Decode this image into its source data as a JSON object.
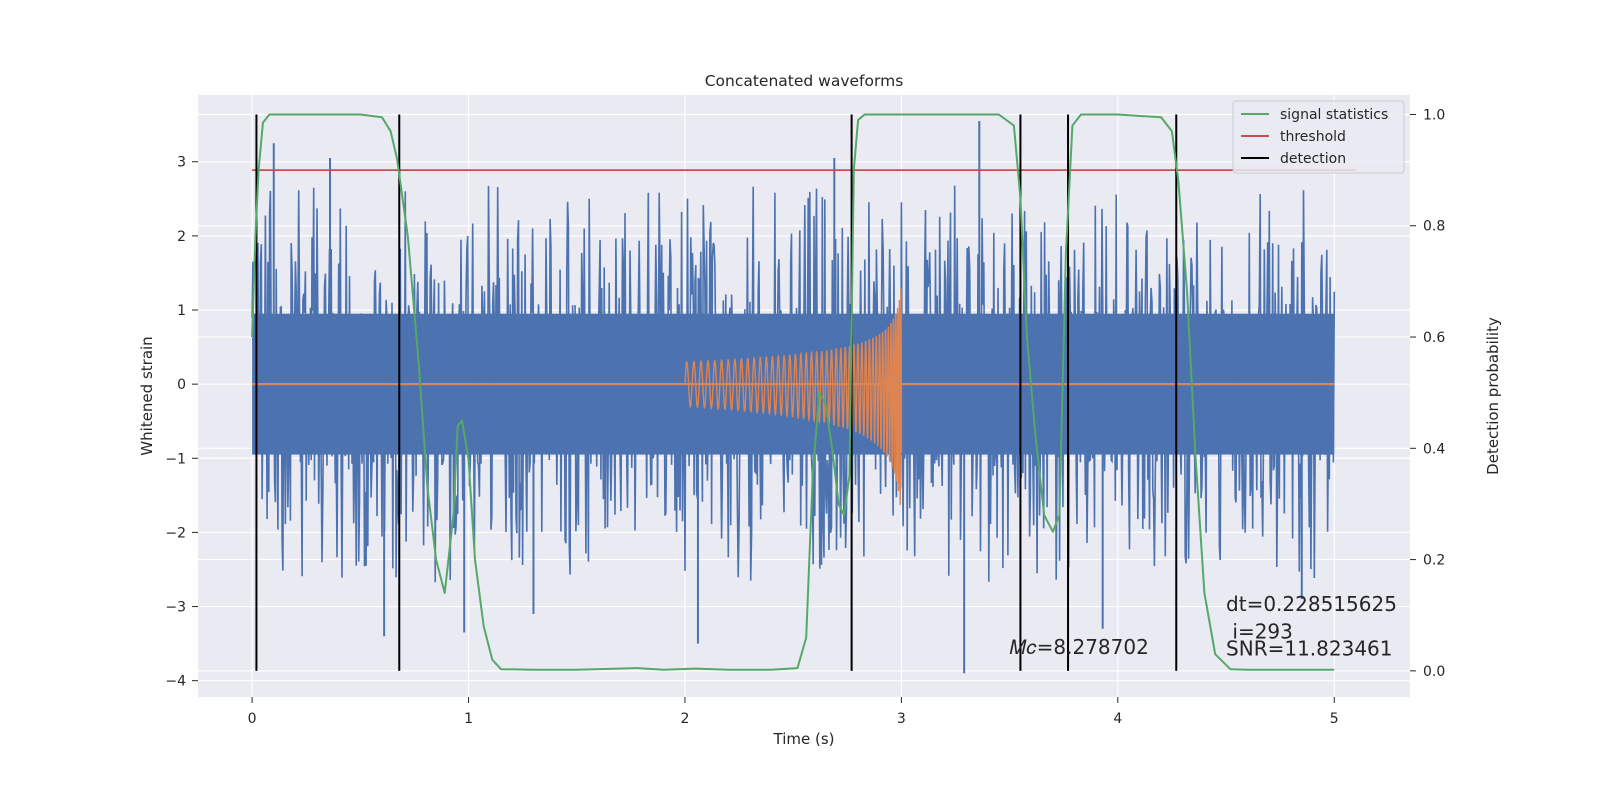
{
  "chart_data": {
    "type": "line",
    "title": "Concatenated waveforms",
    "xlabel": "Time (s)",
    "ylabel": "Whitened strain",
    "y2label": "Detection probability",
    "xlim": [
      -0.25,
      5.35
    ],
    "ylim": [
      -4.22,
      3.9
    ],
    "y2lim": [
      -0.047,
      1.035
    ],
    "xticks": [
      0,
      1,
      2,
      3,
      4,
      5
    ],
    "yticks": [
      -4,
      -3,
      -2,
      -1,
      0,
      1,
      2,
      3
    ],
    "y2ticks": [
      0.0,
      0.2,
      0.4,
      0.6,
      0.8,
      1.0
    ],
    "xtick_labels": [
      "0",
      "1",
      "2",
      "3",
      "4",
      "5"
    ],
    "ytick_labels": [
      "−4",
      "−3",
      "−2",
      "−1",
      "0",
      "1",
      "2",
      "3"
    ],
    "y2tick_labels": [
      "0.0",
      "0.2",
      "0.4",
      "0.6",
      "0.8",
      "1.0"
    ],
    "grid": true,
    "legend_position": "top-right",
    "colors": {
      "strain": "#4c72b0",
      "template": "#dd8452",
      "signal_statistics": "#55a868",
      "threshold": "#c44e52",
      "detection": "#000000",
      "background": "#eaeaf2",
      "grid": "#ffffff"
    },
    "legend": [
      {
        "label": "signal statistics",
        "color": "#55a868"
      },
      {
        "label": "threshold",
        "color": "#c44e52"
      },
      {
        "label": "detection",
        "color": "#000000"
      }
    ],
    "strain_noise": {
      "t_start": 0.0,
      "t_end": 5.0,
      "envelope_min": -2.7,
      "envelope_max": 3.5,
      "band": [
        -0.95,
        0.95
      ]
    },
    "strain_spikes": [
      {
        "x": 0.1,
        "y": 3.25
      },
      {
        "x": 0.36,
        "y": 3.05
      },
      {
        "x": 0.61,
        "y": -3.4
      },
      {
        "x": 0.98,
        "y": -3.35
      },
      {
        "x": 1.3,
        "y": -3.1
      },
      {
        "x": 2.06,
        "y": -3.5
      },
      {
        "x": 2.69,
        "y": 3.05
      },
      {
        "x": 3.29,
        "y": -3.9
      },
      {
        "x": 3.36,
        "y": 3.55
      },
      {
        "x": 3.93,
        "y": -3.3
      },
      {
        "x": 4.85,
        "y": -2.9
      }
    ],
    "template_chirp": {
      "t_start": 2.0,
      "t_end": 3.0,
      "amp_start": 0.3,
      "amp_end": 1.35,
      "min_end": -1.85
    },
    "threshold": {
      "x": [
        0.0,
        5.1
      ],
      "value": 0.9
    },
    "signal_statistics": {
      "x": [
        0.0,
        0.015,
        0.03,
        0.05,
        0.08,
        0.15,
        0.3,
        0.5,
        0.6,
        0.64,
        0.67,
        0.72,
        0.77,
        0.81,
        0.85,
        0.89,
        0.93,
        0.95,
        0.97,
        1.0,
        1.03,
        1.07,
        1.11,
        1.15,
        1.3,
        1.5,
        1.78,
        1.9,
        2.05,
        2.2,
        2.4,
        2.52,
        2.56,
        2.59,
        2.62,
        2.65,
        2.68,
        2.71,
        2.735,
        2.76,
        2.78,
        2.8,
        2.83,
        2.9,
        3.2,
        3.45,
        3.52,
        3.55,
        3.58,
        3.62,
        3.66,
        3.7,
        3.73,
        3.76,
        3.79,
        3.83,
        3.88,
        4.0,
        4.2,
        4.25,
        4.28,
        4.32,
        4.36,
        4.4,
        4.45,
        4.52,
        4.6,
        4.8,
        5.0
      ],
      "y": [
        0.6,
        0.78,
        0.9,
        0.985,
        1.0,
        1.0,
        1.0,
        1.0,
        0.995,
        0.97,
        0.92,
        0.78,
        0.55,
        0.33,
        0.2,
        0.14,
        0.28,
        0.44,
        0.45,
        0.38,
        0.2,
        0.08,
        0.02,
        0.003,
        0.002,
        0.002,
        0.005,
        0.002,
        0.004,
        0.002,
        0.002,
        0.005,
        0.06,
        0.35,
        0.5,
        0.48,
        0.4,
        0.3,
        0.28,
        0.35,
        0.9,
        0.99,
        1.0,
        1.0,
        1.0,
        1.0,
        0.98,
        0.85,
        0.6,
        0.42,
        0.28,
        0.25,
        0.28,
        0.75,
        0.98,
        1.0,
        1.0,
        1.0,
        0.995,
        0.97,
        0.88,
        0.68,
        0.38,
        0.14,
        0.03,
        0.003,
        0.002,
        0.002,
        0.002
      ]
    },
    "detections": [
      0.02,
      0.68,
      2.77,
      3.55,
      3.77,
      4.27
    ],
    "annotations": [
      {
        "name": "mc-annotation",
        "text": "𝑀𝑐=8.278702"
      },
      {
        "name": "dt-annotation",
        "text": "dt=0.228515625"
      },
      {
        "name": "i-annotation",
        "text": " i=293"
      },
      {
        "name": "snr-annotation",
        "text": "SNR=11.823461"
      }
    ]
  }
}
